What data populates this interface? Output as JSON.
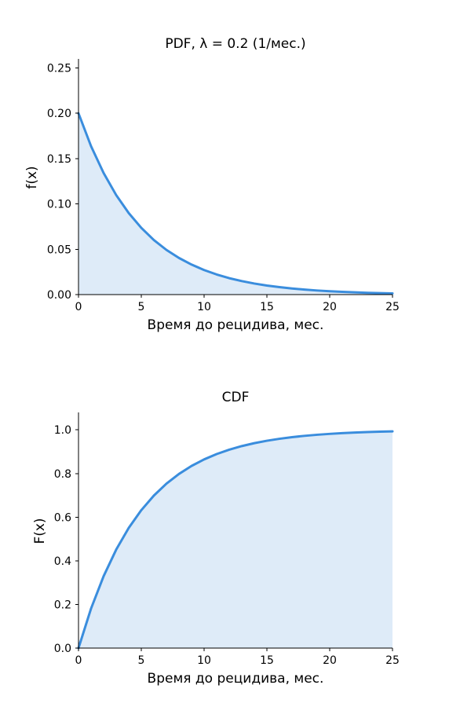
{
  "chart_data": [
    {
      "type": "area",
      "title": "PDF, λ = 0.2 (1/мес.)",
      "xlabel": "Время до рецидива, мес.",
      "ylabel": "f(x)",
      "xlim": [
        0,
        25
      ],
      "ylim": [
        0,
        0.26
      ],
      "xticks": [
        "0",
        "5",
        "10",
        "15",
        "20",
        "25"
      ],
      "yticks": [
        "0.00",
        "0.05",
        "0.10",
        "0.15",
        "0.20",
        "0.25"
      ],
      "grid": false,
      "line_color": "#3a8ddd",
      "fill_color": "#deebf8",
      "x": [
        0,
        1,
        2,
        3,
        4,
        5,
        6,
        7,
        8,
        9,
        10,
        11,
        12,
        13,
        14,
        15,
        16,
        17,
        18,
        19,
        20,
        21,
        22,
        23,
        24,
        25
      ],
      "y": [
        0.2,
        0.1637,
        0.1341,
        0.1098,
        0.0899,
        0.0736,
        0.0602,
        0.0493,
        0.0404,
        0.0331,
        0.0271,
        0.0222,
        0.0181,
        0.0149,
        0.0122,
        0.01,
        0.0082,
        0.0067,
        0.0055,
        0.0045,
        0.0037,
        0.003,
        0.0025,
        0.002,
        0.0016,
        0.0013
      ]
    },
    {
      "type": "area",
      "title": "CDF",
      "xlabel": "Время до рецидива, мес.",
      "ylabel": "F(x)",
      "xlim": [
        0,
        25
      ],
      "ylim": [
        0,
        1.08
      ],
      "xticks": [
        "0",
        "5",
        "10",
        "15",
        "20",
        "25"
      ],
      "yticks": [
        "0.0",
        "0.2",
        "0.4",
        "0.6",
        "0.8",
        "1.0"
      ],
      "grid": false,
      "line_color": "#3a8ddd",
      "fill_color": "#deebf8",
      "x": [
        0,
        1,
        2,
        3,
        4,
        5,
        6,
        7,
        8,
        9,
        10,
        11,
        12,
        13,
        14,
        15,
        16,
        17,
        18,
        19,
        20,
        21,
        22,
        23,
        24,
        25
      ],
      "y": [
        0,
        0.1813,
        0.3297,
        0.4512,
        0.5507,
        0.6321,
        0.6988,
        0.7534,
        0.7981,
        0.8347,
        0.8647,
        0.8892,
        0.9093,
        0.9257,
        0.9392,
        0.9502,
        0.9592,
        0.9666,
        0.9727,
        0.9776,
        0.9817,
        0.985,
        0.9877,
        0.99,
        0.9918,
        0.9933
      ]
    }
  ]
}
